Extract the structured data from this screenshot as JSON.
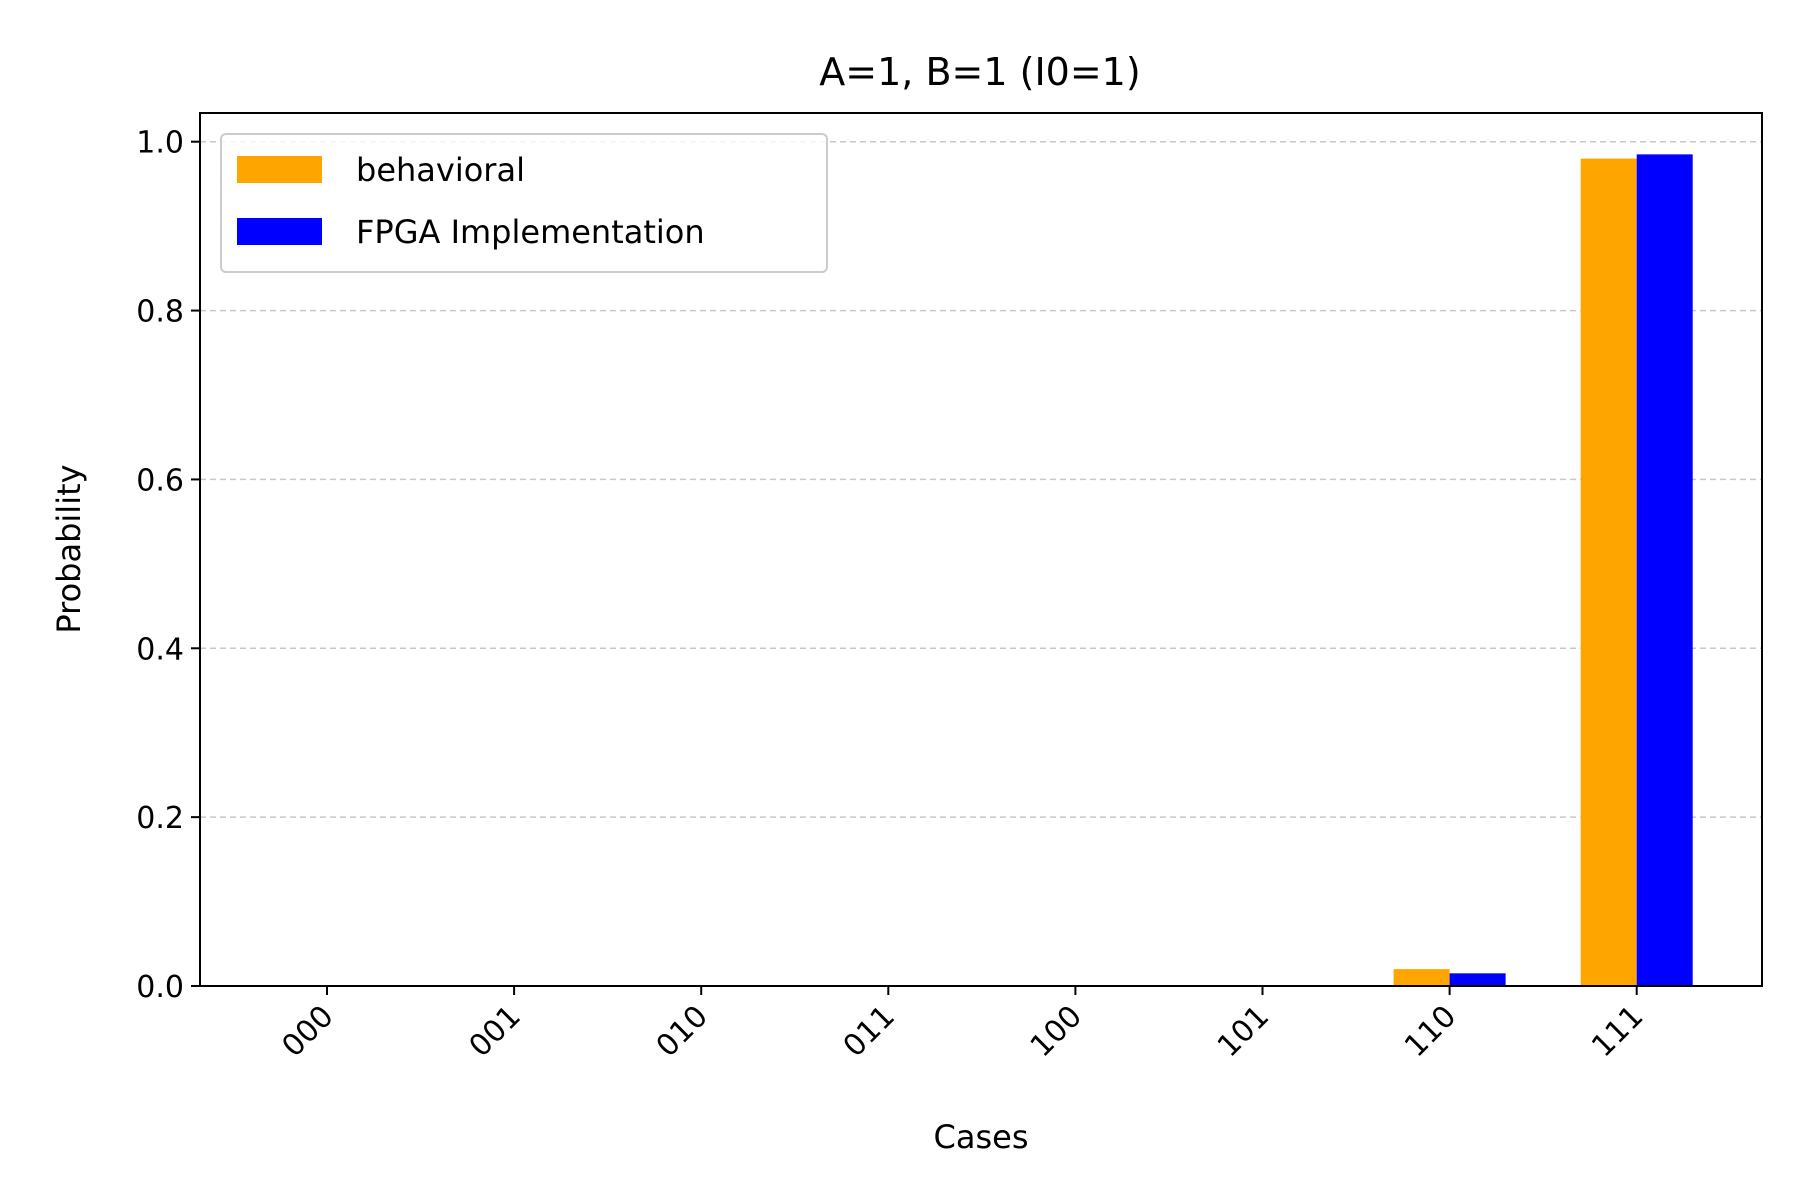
{
  "chart_data": {
    "type": "bar",
    "title": "A=1, B=1 (I0=1)",
    "xlabel": "Cases",
    "ylabel": "Probability",
    "categories": [
      "000",
      "001",
      "010",
      "011",
      "100",
      "101",
      "110",
      "111"
    ],
    "series": [
      {
        "name": "behavioral",
        "color": "#ffa500",
        "values": [
          0,
          0,
          0,
          0,
          0,
          0,
          0.02,
          0.98
        ]
      },
      {
        "name": "FPGA Implementation",
        "color": "#0000ff",
        "values": [
          0,
          0,
          0,
          0,
          0,
          0,
          0.015,
          0.985
        ]
      }
    ],
    "ylim": [
      0,
      1.034
    ],
    "yticks": [
      0.0,
      0.2,
      0.4,
      0.6,
      0.8,
      1.0
    ],
    "ytick_labels": [
      "0.0",
      "0.2",
      "0.4",
      "0.6",
      "0.8",
      "1.0"
    ],
    "grid": {
      "axis": "y",
      "style": "dashed",
      "color": "#c8c8c8"
    },
    "legend_position": "top-left"
  }
}
